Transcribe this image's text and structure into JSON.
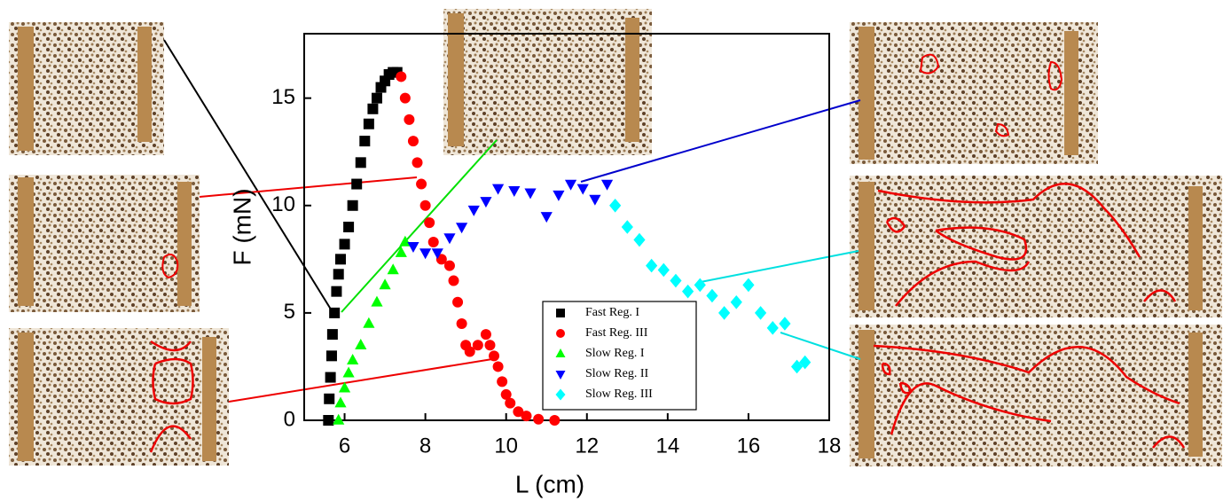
{
  "chart_data": {
    "type": "scatter",
    "x_label": "L (cm)",
    "y_label": "F (mN)",
    "xlim": [
      5,
      18
    ],
    "xticks": [
      6,
      8,
      10,
      12,
      14,
      16,
      18
    ],
    "ylim": [
      0,
      18
    ],
    "yticks": [
      0,
      5,
      10,
      15
    ],
    "legend": "lower right",
    "series": [
      {
        "name": "Fast  Reg. I",
        "color": "#000000",
        "marker": "square",
        "x": [
          5.6,
          5.62,
          5.65,
          5.68,
          5.7,
          5.75,
          5.8,
          5.85,
          5.9,
          6.0,
          6.1,
          6.2,
          6.3,
          6.4,
          6.5,
          6.6,
          6.7,
          6.8,
          6.9,
          7.0,
          7.1,
          7.2,
          7.3
        ],
        "values": [
          0,
          1,
          2,
          3,
          4,
          5,
          6,
          6.8,
          7.5,
          8.2,
          9,
          10,
          11,
          12,
          13,
          13.8,
          14.5,
          15,
          15.5,
          15.8,
          16.1,
          16.2,
          16.2
        ]
      },
      {
        "name": "Fast  Reg. III",
        "color": "#ff0000",
        "marker": "circle",
        "x": [
          7.4,
          7.5,
          7.6,
          7.7,
          7.8,
          7.9,
          8.0,
          8.1,
          8.2,
          8.4,
          8.6,
          8.7,
          8.8,
          8.9,
          9.0,
          9.1,
          9.3,
          9.5,
          9.6,
          9.7,
          9.8,
          9.9,
          10.0,
          10.1,
          10.3,
          10.5,
          10.8,
          11.2
        ],
        "values": [
          16,
          15,
          14,
          13,
          12,
          11,
          10,
          9.2,
          8.3,
          7.5,
          7.2,
          6.5,
          5.5,
          4.5,
          3.5,
          3.2,
          3.5,
          4,
          3.5,
          3,
          2.5,
          1.8,
          1.2,
          0.8,
          0.4,
          0.2,
          0.05,
          0
        ]
      },
      {
        "name": "Slow Reg. I",
        "color": "#00ff00",
        "marker": "triangle-up",
        "x": [
          5.85,
          5.9,
          6.0,
          6.1,
          6.2,
          6.4,
          6.6,
          6.8,
          7.0,
          7.2,
          7.4,
          7.5
        ],
        "values": [
          0,
          0.8,
          1.5,
          2.2,
          2.8,
          3.5,
          4.5,
          5.5,
          6.3,
          7,
          7.8,
          8.3
        ]
      },
      {
        "name": "Slow Reg. II",
        "color": "#0000ff",
        "marker": "triangle-down",
        "x": [
          7.7,
          8.0,
          8.3,
          8.6,
          8.9,
          9.2,
          9.5,
          9.8,
          10.2,
          10.6,
          11.0,
          11.3,
          11.6,
          11.9,
          12.2,
          12.5
        ],
        "values": [
          8.1,
          7.8,
          7.8,
          8.5,
          9,
          9.8,
          10.2,
          10.8,
          10.7,
          10.6,
          9.5,
          10.5,
          11,
          10.8,
          10.3,
          11
        ]
      },
      {
        "name": "Slow Reg. III",
        "color": "#00ffff",
        "marker": "diamond",
        "x": [
          12.7,
          13.0,
          13.3,
          13.6,
          13.9,
          14.2,
          14.5,
          14.8,
          15.1,
          15.4,
          15.7,
          16.0,
          16.3,
          16.6,
          16.9,
          17.2,
          17.4
        ],
        "values": [
          10,
          9,
          8.4,
          7.2,
          7,
          6.5,
          6,
          6.3,
          5.8,
          5,
          5.5,
          6.3,
          5,
          4.3,
          4.5,
          2.5,
          2.7
        ]
      }
    ]
  }
}
